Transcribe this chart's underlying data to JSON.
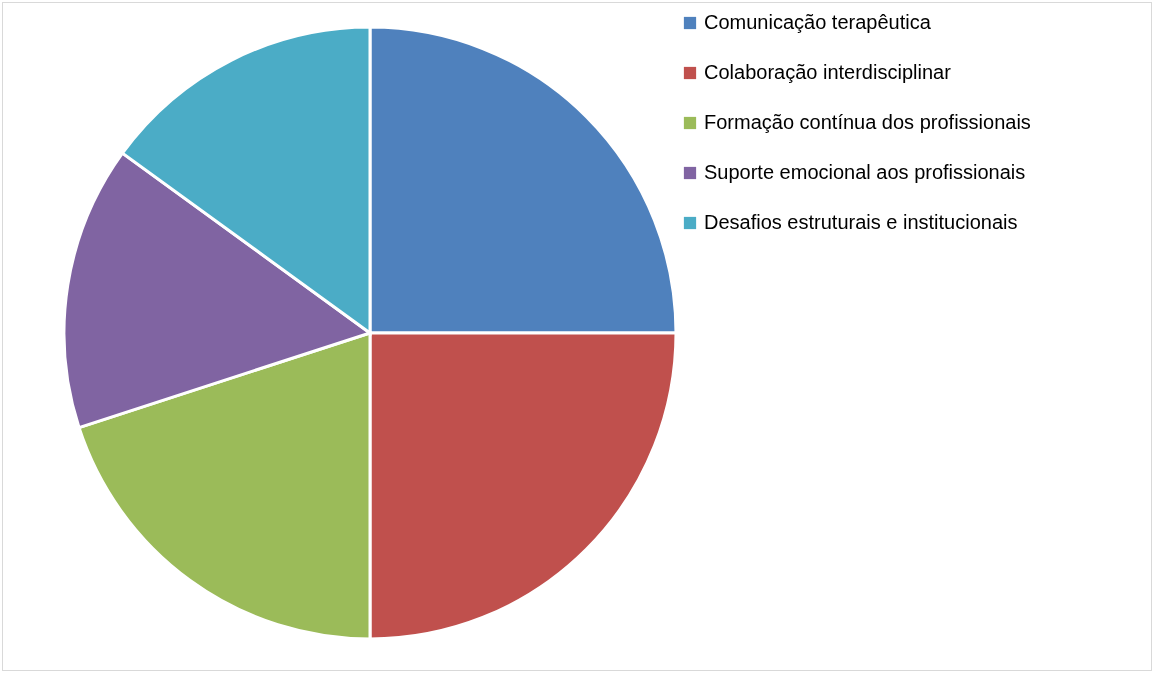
{
  "chart_data": {
    "type": "pie",
    "categories": [
      "Comunicação terapêutica",
      "Colaboração interdisciplinar",
      "Formação contínua dos profissionais",
      "Suporte emocional aos profissionais",
      "Desafios estruturais e institucionais"
    ],
    "values": [
      25,
      25,
      20,
      15,
      15
    ],
    "colors": [
      "#4f81bd",
      "#c0504d",
      "#9bbb59",
      "#8064a2",
      "#4bacc6"
    ],
    "legend": "right"
  }
}
